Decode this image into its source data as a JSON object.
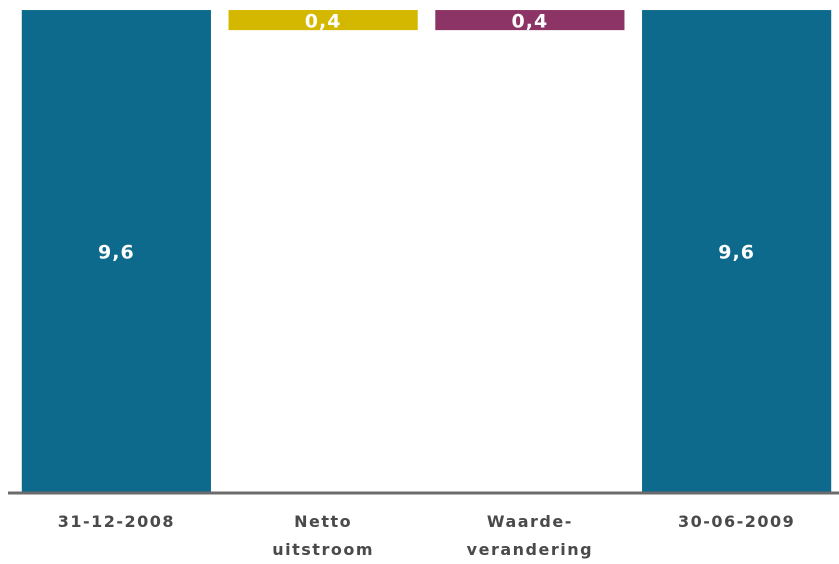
{
  "chart_data": {
    "type": "waterfall",
    "categories": [
      "31-12-2008",
      "Netto\nuitstroom",
      "Waarde-\nverandering",
      "30-06-2009"
    ],
    "values": [
      9.6,
      -0.4,
      0.4,
      9.6
    ],
    "value_labels": [
      "9,6",
      "0,4",
      "0,4",
      "9,6"
    ],
    "colors": [
      "#0e6a8c",
      "#d4b800",
      "#8b3465",
      "#0e6a8c"
    ],
    "ylim": [
      0,
      9.8
    ]
  }
}
